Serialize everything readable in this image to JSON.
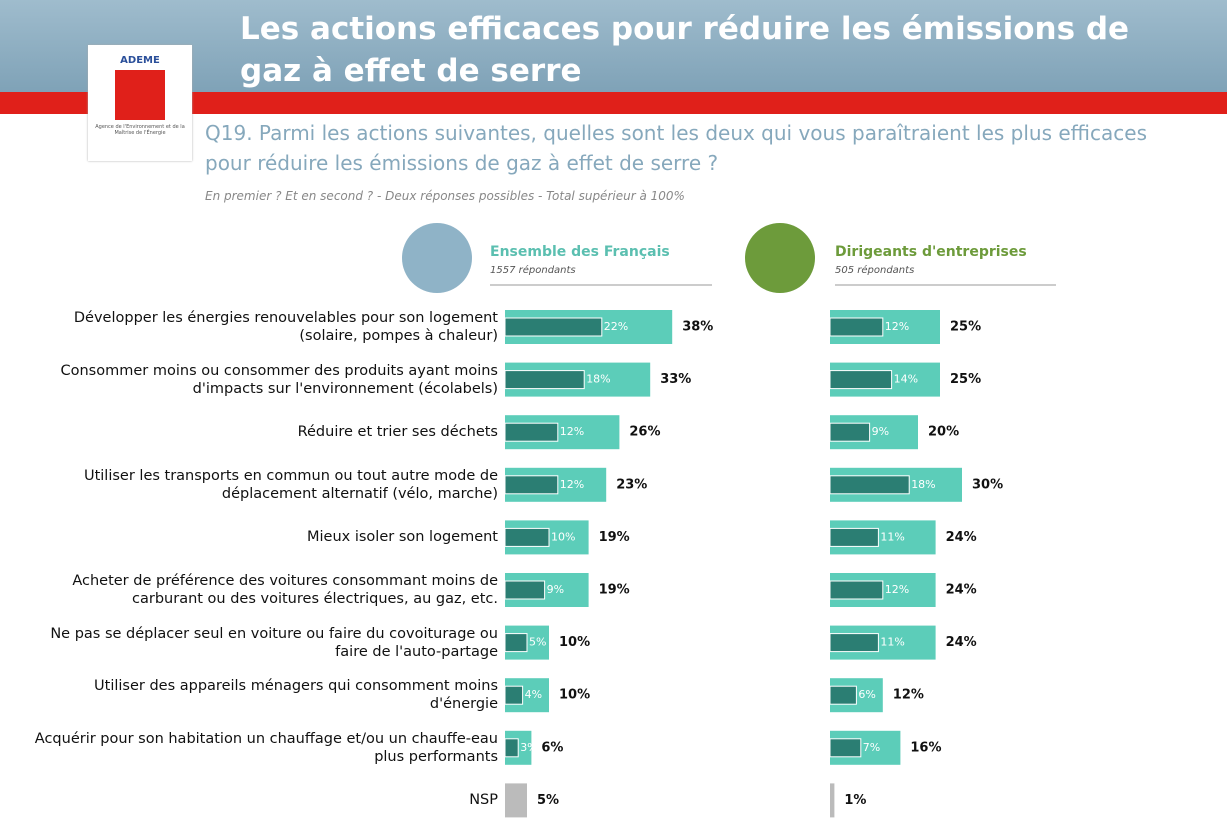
{
  "header": {
    "logo_text": "ADEME",
    "logo_caption": "Agence de l'Environnement et de la Maîtrise de l'Énergie"
  },
  "chart_data": {
    "type": "bar",
    "title": "Les actions efficaces pour réduire les émissions de gaz à effet de serre",
    "subtitle": "Q19. Parmi les actions suivantes, quelles sont les deux qui vous paraîtraient les plus efficaces pour réduire les émissions de gaz à effet de serre ?",
    "note": "En premier ? Et en second ? - Deux réponses possibles - Total supérieur à 100%",
    "categories": [
      "Développer les énergies renouvelables pour son logement (solaire, pompes à chaleur)",
      "Consommer moins ou consommer des produits ayant moins d'impacts sur l'environnement (écolabels)",
      "Réduire et trier ses déchets",
      "Utiliser les transports en commun ou tout autre mode de déplacement alternatif (vélo, marche)",
      "Mieux isoler son logement",
      "Acheter de préférence des voitures consommant moins de carburant ou des voitures électriques, au gaz, etc.",
      "Ne pas se déplacer seul en voiture ou faire du covoiturage ou faire de l'auto-partage",
      "Utiliser des appareils ménagers qui consomment moins d'énergie",
      "Acquérir pour son habitation un chauffage et/ou un chauffe-eau plus performants",
      "NSP"
    ],
    "series": [
      {
        "name": "Ensemble des Français",
        "respondents": "1557 répondants",
        "color": "#5ccdb9",
        "first_color": "#2b7e73",
        "header_color": "#8fb3c7",
        "values": [
          38,
          33,
          26,
          23,
          19,
          19,
          10,
          10,
          6,
          5
        ],
        "value_labels": [
          "38%",
          "33%",
          "26%",
          "23%",
          "19%",
          "19%",
          "10%",
          "10%",
          "6%",
          "5%"
        ],
        "first_values": [
          22,
          18,
          12,
          12,
          10,
          9,
          5,
          4,
          3,
          null
        ],
        "first_labels": [
          "22%",
          "18%",
          "12%",
          "12%",
          "10%",
          "9%",
          "5%",
          "4%",
          "3%",
          null
        ],
        "colors": [
          "#5ccdb9",
          "#5ccdb9",
          "#5ccdb9",
          "#5ccdb9",
          "#5ccdb9",
          "#5ccdb9",
          "#5ccdb9",
          "#5ccdb9",
          "#5ccdb9",
          "#bbbbbb"
        ]
      },
      {
        "name": "Dirigeants d'entreprises",
        "respondents": "505 répondants",
        "color": "#5ccdb9",
        "first_color": "#2b7e73",
        "header_color": "#6d9b3b",
        "values": [
          25,
          25,
          20,
          30,
          24,
          24,
          24,
          12,
          16,
          1
        ],
        "value_labels": [
          "25%",
          "25%",
          "20%",
          "30%",
          "24%",
          "24%",
          "24%",
          "12%",
          "16%",
          "1%"
        ],
        "first_values": [
          12,
          14,
          9,
          18,
          11,
          12,
          11,
          6,
          7,
          null
        ],
        "first_labels": [
          "12%",
          "14%",
          "9%",
          "18%",
          "11%",
          "12%",
          "11%",
          "6%",
          "7%",
          null
        ],
        "colors": [
          "#5ccdb9",
          "#5ccdb9",
          "#5ccdb9",
          "#5ccdb9",
          "#5ccdb9",
          "#5ccdb9",
          "#5ccdb9",
          "#5ccdb9",
          "#5ccdb9",
          "#bbbbbb"
        ]
      }
    ]
  }
}
